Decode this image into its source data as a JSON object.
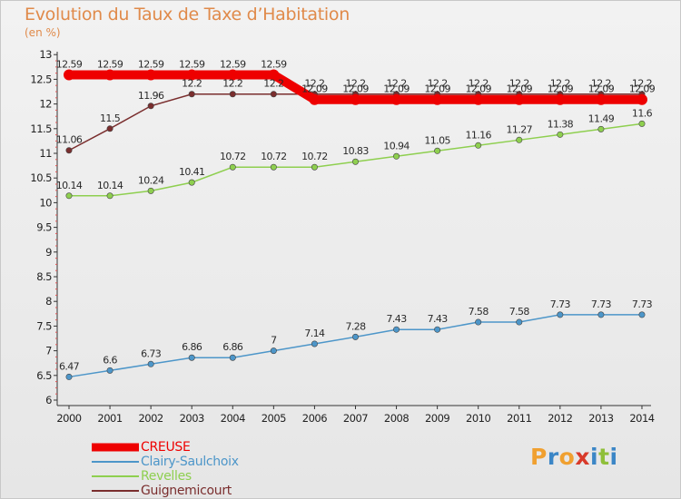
{
  "chart_data": {
    "type": "line",
    "title": "Evolution du Taux de Taxe d’Habitation",
    "subtitle": "(en %)",
    "x": [
      "2000",
      "2001",
      "2002",
      "2003",
      "2004",
      "2005",
      "2006",
      "2007",
      "2008",
      "2009",
      "2010",
      "2011",
      "2012",
      "2013",
      "2014"
    ],
    "ylim": [
      6,
      13
    ],
    "yticks": [
      "6",
      "6.5",
      "7",
      "7.5",
      "8",
      "8.5",
      "9",
      "9.5",
      "10",
      "10.5",
      "11",
      "11.5",
      "12",
      "12.5",
      "13"
    ],
    "grid": false,
    "legend_position": "bottom-left",
    "series": [
      {
        "name": "CREUSE",
        "color": "#ee0000",
        "values": [
          12.59,
          12.59,
          12.59,
          12.59,
          12.59,
          12.59,
          12.09,
          12.09,
          12.09,
          12.09,
          12.09,
          12.09,
          12.09,
          12.09,
          12.09
        ],
        "labels": [
          "12.59",
          "12.59",
          "12.59",
          "12.59",
          "12.59",
          "12.59",
          "12.09",
          "12.09",
          "12.09",
          "12.09",
          "12.09",
          "12.09",
          "12.09",
          "12.09",
          "12.09"
        ]
      },
      {
        "name": "Clairy-Saulchoix",
        "color": "#4d96c9",
        "values": [
          6.47,
          6.6,
          6.73,
          6.86,
          6.86,
          7,
          7.14,
          7.28,
          7.43,
          7.43,
          7.58,
          7.58,
          7.73,
          7.73,
          7.73
        ],
        "labels": [
          "6.47",
          "6.6",
          "6.73",
          "6.86",
          "6.86",
          "7",
          "7.14",
          "7.28",
          "7.43",
          "7.43",
          "7.58",
          "7.58",
          "7.73",
          "7.73",
          "7.73"
        ]
      },
      {
        "name": "Revelles",
        "color": "#8ecf4f",
        "values": [
          10.14,
          10.14,
          10.24,
          10.41,
          10.72,
          10.72,
          10.72,
          10.83,
          10.94,
          11.05,
          11.16,
          11.27,
          11.38,
          11.49,
          11.6
        ],
        "labels": [
          "10.14",
          "10.14",
          "10.24",
          "10.41",
          "10.72",
          "10.72",
          "10.72",
          "10.83",
          "10.94",
          "11.05",
          "11.16",
          "11.27",
          "11.38",
          "11.49",
          "11.6"
        ]
      },
      {
        "name": "Guignemicourt",
        "color": "#7a2e2e",
        "values": [
          11.06,
          11.5,
          11.96,
          12.2,
          12.2,
          12.2,
          12.2,
          12.2,
          12.2,
          12.2,
          12.2,
          12.2,
          12.2,
          12.2,
          12.2
        ],
        "labels": [
          "11.06",
          "11.5",
          "11.96",
          "12.2",
          "12.2",
          "12.2",
          "12.2",
          "12.2",
          "12.2",
          "12.2",
          "12.2",
          "12.2",
          "12.2",
          "12.2",
          "12.2"
        ]
      }
    ]
  },
  "legend": [
    {
      "label": "CREUSE",
      "color": "#ee0000"
    },
    {
      "label": "Clairy-Saulchoix",
      "color": "#4d96c9"
    },
    {
      "label": "Revelles",
      "color": "#8ecf4f"
    },
    {
      "label": "Guignemicourt",
      "color": "#7a2e2e"
    }
  ],
  "logo": {
    "text": "Proxiti",
    "letters": [
      "P",
      "r",
      "o",
      "x",
      "i",
      "t",
      "i"
    ],
    "colors": [
      "#f0a030",
      "#3b86c6",
      "#f0a030",
      "#d83a2a",
      "#3b86c6",
      "#8fbf3a",
      "#3b86c6"
    ]
  }
}
